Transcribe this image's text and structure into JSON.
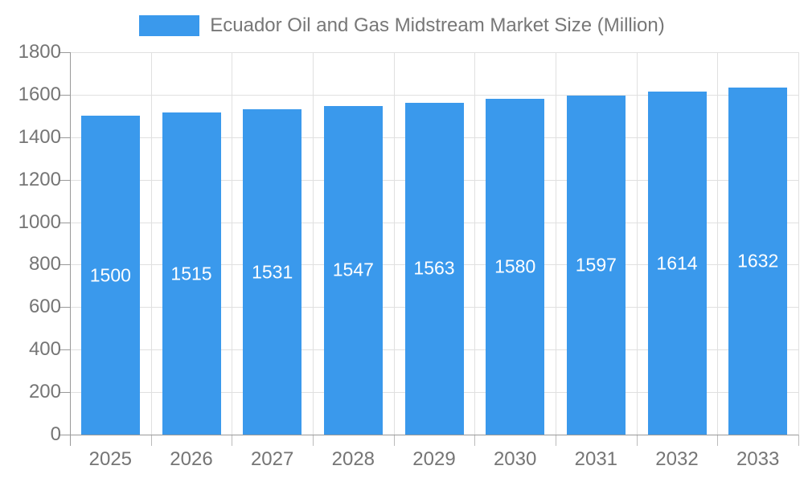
{
  "chart_data": {
    "type": "bar",
    "title": "Ecuador Oil and Gas Midstream Market Size (Million)",
    "categories": [
      "2025",
      "2026",
      "2027",
      "2028",
      "2029",
      "2030",
      "2031",
      "2032",
      "2033"
    ],
    "values": [
      1500,
      1515,
      1531,
      1547,
      1563,
      1580,
      1597,
      1614,
      1632
    ],
    "xlabel": "",
    "ylabel": "",
    "ylim": [
      0,
      1800
    ],
    "ytick_interval": 200,
    "ytick_labels": [
      "0",
      "200",
      "400",
      "600",
      "800",
      "1000",
      "1200",
      "1400",
      "1600",
      "1800"
    ],
    "grid": true,
    "legend_position": "top",
    "colors": {
      "bar": "#3a99ec",
      "value_label": "#ffffff",
      "grid": "#e0e0e0",
      "axis": "#999999",
      "tick": "#bbbbbb",
      "tick_label": "#757575",
      "legend_text": "#777777"
    }
  }
}
